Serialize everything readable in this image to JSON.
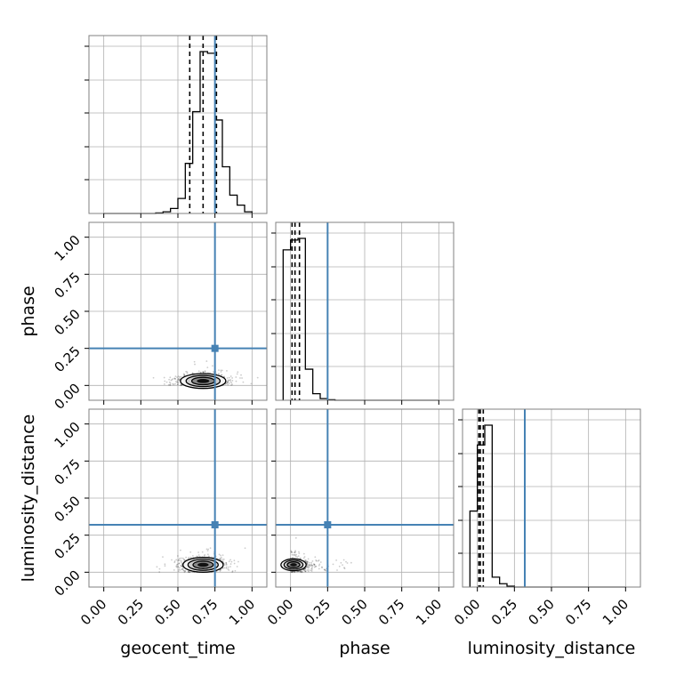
{
  "chart_data": {
    "type": "corner",
    "parameters": [
      "geocent_time",
      "phase",
      "luminosity_distance"
    ],
    "axis_labels": {
      "x": [
        "geocent_time",
        "phase",
        "luminosity_distance"
      ],
      "y": [
        "",
        "phase",
        "luminosity_distance"
      ]
    },
    "ranges": {
      "geocent_time": [
        -0.1,
        1.1
      ],
      "phase": [
        -0.1,
        1.1
      ],
      "luminosity_distance": [
        -0.1,
        1.1
      ]
    },
    "tick_values": [
      0.0,
      0.25,
      0.5,
      0.75,
      1.0
    ],
    "tick_labels": [
      "0.00",
      "0.25",
      "0.50",
      "0.75",
      "1.00"
    ],
    "truths": {
      "geocent_time": 0.75,
      "phase": 0.25,
      "luminosity_distance": 0.32
    },
    "quantiles": {
      "geocent_time": [
        0.58,
        0.67,
        0.76
      ],
      "phase": [
        0.01,
        0.03,
        0.06
      ],
      "luminosity_distance": [
        0.01,
        0.02,
        0.04
      ]
    },
    "histograms": {
      "geocent_time": {
        "bin_edges": [
          0.0,
          0.05,
          0.1,
          0.15,
          0.2,
          0.25,
          0.3,
          0.35,
          0.4,
          0.45,
          0.5,
          0.55,
          0.6,
          0.65,
          0.7,
          0.75,
          0.8,
          0.85,
          0.9,
          0.95,
          1.0
        ],
        "values": [
          0,
          0,
          0,
          0,
          0,
          0,
          0,
          0.003,
          0.01,
          0.03,
          0.09,
          0.3,
          0.61,
          0.97,
          0.96,
          0.56,
          0.28,
          0.11,
          0.05,
          0.01
        ]
      },
      "phase": {
        "bin_edges": [
          -0.05,
          0.0,
          0.05,
          0.1,
          0.15,
          0.2,
          0.25,
          0.3,
          0.35,
          0.4,
          0.45,
          0.5,
          0.55,
          0.6,
          0.65,
          0.7,
          0.75,
          0.8,
          0.85,
          0.9,
          0.95,
          1.0
        ],
        "values": [
          0.92,
          0.98,
          0.99,
          0.19,
          0.04,
          0.01,
          0.003,
          0,
          0,
          0,
          0,
          0,
          0,
          0,
          0,
          0,
          0,
          0,
          0,
          0,
          0
        ]
      },
      "luminosity_distance": {
        "bin_edges": [
          -0.05,
          0.0,
          0.05,
          0.1,
          0.15,
          0.2,
          0.25,
          0.3,
          0.35,
          0.4,
          0.45,
          0.5,
          0.55,
          0.6,
          0.65,
          0.7,
          0.75,
          0.8,
          0.85,
          0.9,
          0.95,
          1.0
        ],
        "values": [
          0.46,
          0.86,
          0.98,
          0.06,
          0.02,
          0.005,
          0,
          0,
          0,
          0,
          0,
          0,
          0,
          0,
          0,
          0,
          0,
          0,
          0,
          0,
          0
        ]
      }
    },
    "joint": {
      "phase_vs_geocent_time": {
        "center": [
          0.67,
          0.03
        ],
        "spread": [
          0.09,
          0.025
        ]
      },
      "luminosity_distance_vs_geocent_time": {
        "center": [
          0.67,
          0.05
        ],
        "spread": [
          0.08,
          0.025
        ]
      },
      "luminosity_distance_vs_phase": {
        "center": [
          0.02,
          0.05
        ],
        "spread": [
          0.05,
          0.02
        ]
      }
    },
    "grid": true,
    "colors": {
      "truth": "#4682b4",
      "hist": "#000000",
      "quantile": "#000000",
      "grid": "#b0b0b0",
      "frame": "#808080"
    }
  }
}
